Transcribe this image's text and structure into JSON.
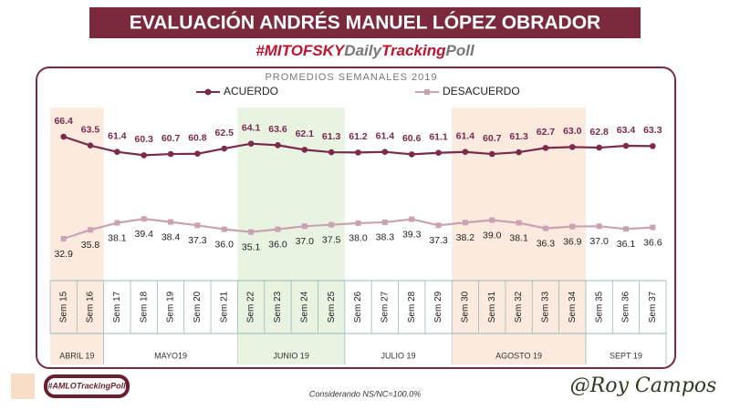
{
  "chart_data": {
    "type": "line",
    "title": "EVALUACIÓN ANDRÉS MANUEL LÓPEZ OBRADOR",
    "hashtag": [
      "#MITOFSKY",
      "Daily",
      "Tracking",
      "Poll"
    ],
    "subtitle": "PROMEDIOS SEMANALES 2019",
    "categories": [
      "Sem 15",
      "Sem 16",
      "Sem 17",
      "Sem 18",
      "Sem 19",
      "Sem 20",
      "Sem 21",
      "Sem 22",
      "Sem 23",
      "Sem 24",
      "Sem 25",
      "Sem 26",
      "Sem 27",
      "Sem 28",
      "Sem 29",
      "Sem 30",
      "Sem 31",
      "Sem 32",
      "Sem 33",
      "Sem 34",
      "Sem 35",
      "Sem 36",
      "Sem 37"
    ],
    "series": [
      {
        "name": "ACUERDO",
        "color": "#7b2a4c",
        "marker": "circle",
        "values": [
          66.4,
          63.5,
          61.4,
          60.3,
          60.7,
          60.8,
          62.5,
          64.1,
          63.6,
          62.1,
          61.3,
          61.2,
          61.4,
          60.6,
          61.1,
          61.4,
          60.7,
          61.3,
          62.7,
          63.0,
          62.8,
          63.4,
          63.3
        ],
        "value_labels": [
          "66.4",
          "63.5",
          "61.4",
          "60.3",
          "60.7",
          "60.8",
          "62.5",
          "64.1",
          "63.6",
          "62.1",
          "61.3",
          "61.2",
          "61.4",
          "60.6",
          "61.1",
          "61.4",
          "60.7",
          "61.3",
          "62.7",
          "63.0",
          "62.8",
          "63.4",
          "63.3"
        ]
      },
      {
        "name": "DESACUERDO",
        "color": "#c9a2b4",
        "marker": "square",
        "values": [
          32.9,
          35.8,
          38.1,
          39.4,
          38.4,
          37.3,
          36.0,
          35.1,
          36.0,
          37.0,
          37.5,
          38.0,
          38.3,
          39.3,
          37.3,
          38.2,
          39.0,
          38.1,
          36.3,
          36.9,
          37.0,
          36.1,
          36.6
        ],
        "value_labels": [
          "32.9",
          "35.8",
          "38.1",
          "39.4",
          "38.4",
          "37.3",
          "36.0",
          "35.1",
          "36.0",
          "37.0",
          "37.5",
          "38.0",
          "38.3",
          "39.3",
          "37.3",
          "38.2",
          "39.0",
          "38.1",
          "36.3",
          "36.9",
          "37.0",
          "36.1",
          "36.6"
        ]
      }
    ],
    "months": [
      {
        "label": "ABRIL 19",
        "first": "Sem 15",
        "last": "Sem 16",
        "color": "#fbeadd"
      },
      {
        "label": "MAYO19",
        "first": "Sem 17",
        "last": "Sem 21"
      },
      {
        "label": "JUNIO 19",
        "first": "Sem 22",
        "last": "Sem 25",
        "color": "#e8f3e2"
      },
      {
        "label": "JULIO 19",
        "first": "Sem 26",
        "last": "Sem 29"
      },
      {
        "label": "AGOSTO 19",
        "first": "Sem 30",
        "last": "Sem 34",
        "color": "#fbeadd"
      },
      {
        "label": "SEPT 19",
        "first": "Sem 35",
        "last": "Sem 37"
      }
    ],
    "footnote": "Considerando NS/NC=100.0%",
    "logo": "#AMLOTrackingPoll",
    "signature": "@Roy Campos"
  }
}
